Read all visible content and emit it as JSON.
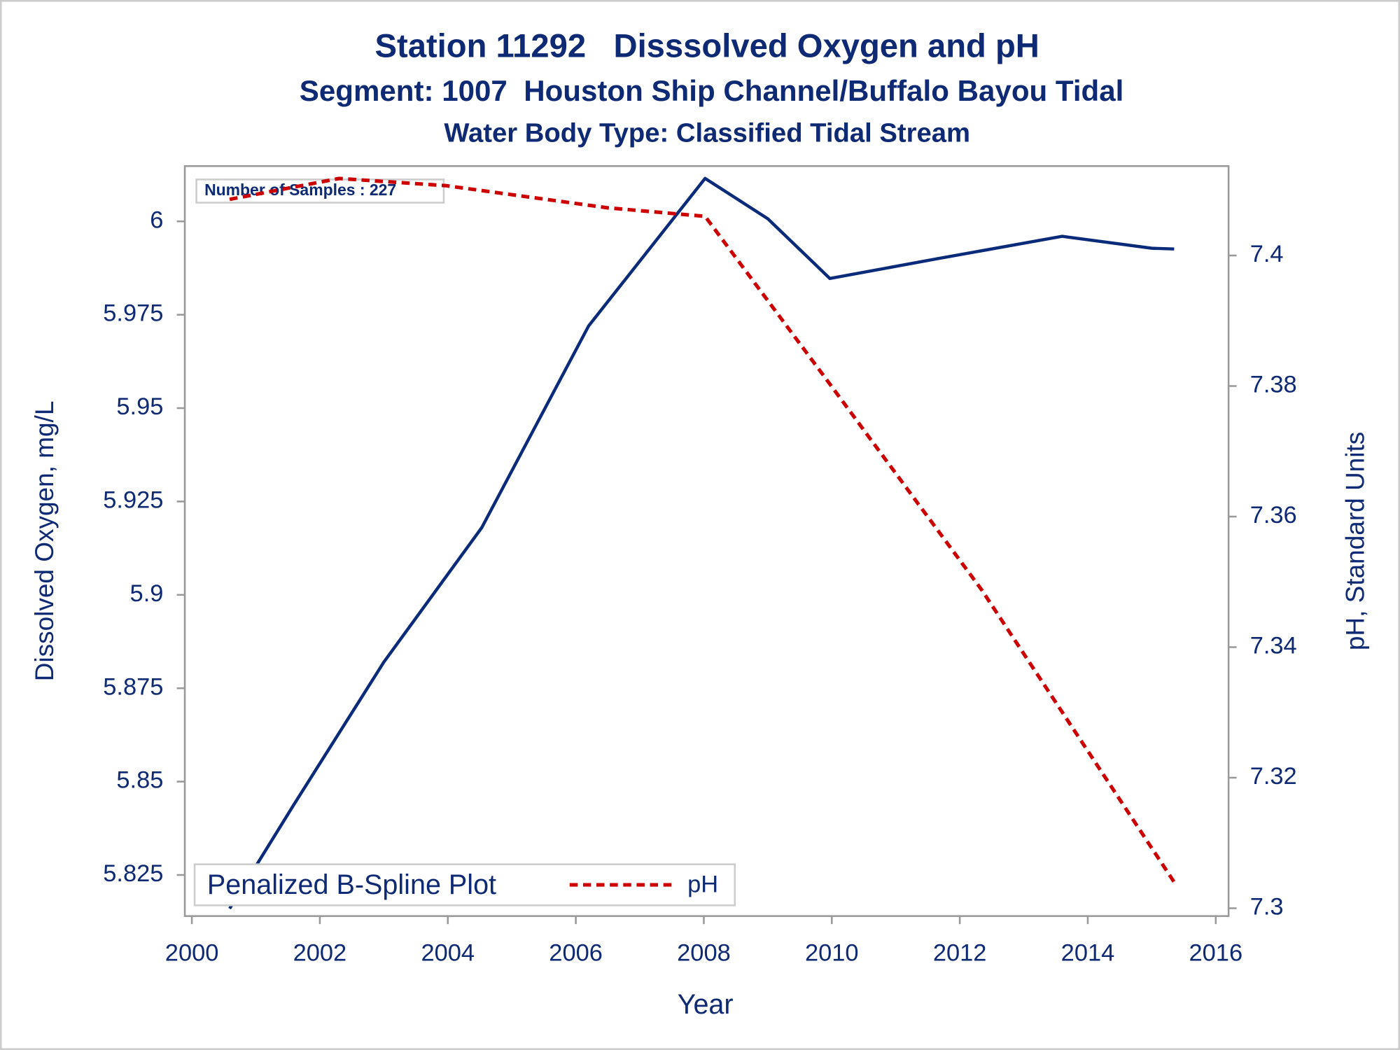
{
  "chart_data": {
    "type": "line",
    "title": "Station 11292   Disssolved Oxygen and pH",
    "subtitles": [
      "Segment: 1007  Houston Ship Channel/Buffalo Bayou Tidal",
      "Water Body Type: Classified Tidal Stream"
    ],
    "annotation": "Number of Samples : 227",
    "x_label": "Year",
    "y_label": "Dissolved Oxygen, mg/L",
    "y2_label": "pH, Standard Units",
    "legend_title": "Penalized B-Spline Plot",
    "legend_position": "bottom-left",
    "grid": false,
    "xlim": [
      1999.89,
      2016.2
    ],
    "xticks": [
      2000,
      2002,
      2004,
      2006,
      2008,
      2010,
      2012,
      2014,
      2016
    ],
    "ylim": [
      5.814,
      6.0148
    ],
    "yticks": [
      5.825,
      5.85,
      5.875,
      5.9,
      5.925,
      5.95,
      5.975,
      6
    ],
    "y2lim": [
      7.2988,
      7.4137
    ],
    "y2ticks": [
      7.3,
      7.32,
      7.34,
      7.36,
      7.38,
      7.4
    ],
    "series": [
      {
        "color": "#0a2a7a",
        "dash": false,
        "x": [
          2000.59,
          2001.6,
          2003.0,
          2004.53,
          2006.2,
          2008.02,
          2009.0,
          2009.97,
          2011.65,
          2013.6,
          2015.0,
          2015.35
        ],
        "values": [
          5.816,
          5.844,
          5.882,
          5.918,
          5.972,
          6.0115,
          6.0007,
          5.9847,
          5.99,
          5.996,
          5.9928,
          5.9926
        ]
      },
      {
        "name": "pH",
        "color": "#cc0000",
        "dash": true,
        "axis": "y2",
        "x": [
          2000.59,
          2002.3,
          2003.97,
          2006.5,
          2008.02,
          2009.97,
          2012.34,
          2015.35
        ],
        "values": [
          7.4086,
          7.4118,
          7.4107,
          7.4073,
          7.406,
          7.3803,
          7.3488,
          7.304
        ]
      }
    ]
  }
}
